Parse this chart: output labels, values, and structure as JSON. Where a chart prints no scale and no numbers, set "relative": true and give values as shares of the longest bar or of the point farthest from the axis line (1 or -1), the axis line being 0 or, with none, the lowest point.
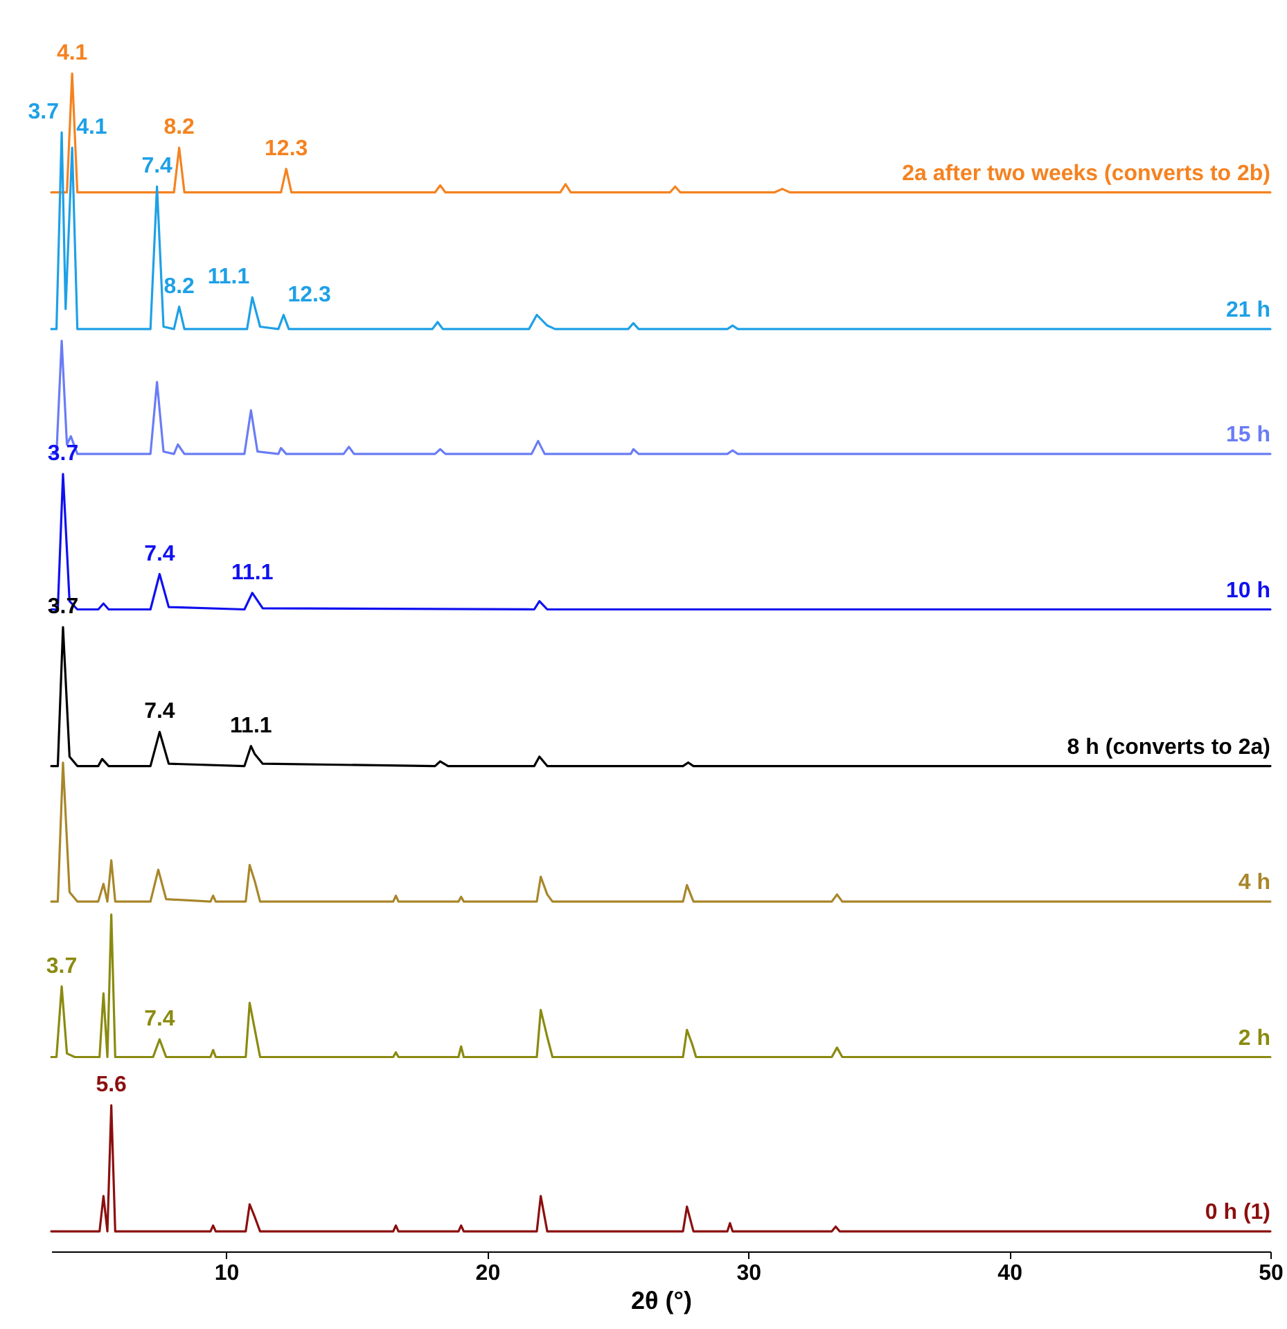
{
  "chart_data": {
    "type": "line",
    "relative": true,
    "xlabel": "2θ (°)",
    "xlim": [
      3.3,
      50
    ],
    "xticks": [
      10,
      20,
      30,
      40,
      50
    ],
    "grid": false,
    "series": [
      {
        "name": "2a after two weeks (converts to 2b)",
        "color": "#f58220",
        "x": [
          3.3,
          3.9,
          4.1,
          4.3,
          8.0,
          8.2,
          8.4,
          12.1,
          12.3,
          12.5,
          18,
          18.2,
          18.4,
          22.8,
          23,
          23.2,
          27,
          27.2,
          27.4,
          31,
          31.3,
          31.6,
          50
        ],
        "values": [
          0.899,
          0.899,
          1.0,
          0.899,
          0.899,
          0.937,
          0.899,
          0.899,
          0.919,
          0.899,
          0.899,
          0.905,
          0.899,
          0.899,
          0.906,
          0.899,
          0.899,
          0.904,
          0.899,
          0.899,
          0.902,
          0.899,
          0.899
        ]
      },
      {
        "name": "21 h",
        "color": "#1ea0e6",
        "x": [
          3.3,
          3.5,
          3.7,
          3.85,
          4.1,
          4.3,
          7.1,
          7.35,
          7.6,
          8.0,
          8.2,
          8.4,
          10.8,
          11.0,
          11.3,
          12.0,
          12.2,
          12.4,
          17.9,
          18.1,
          18.3,
          21.6,
          21.9,
          22.3,
          22.6,
          25.4,
          25.6,
          25.8,
          29.2,
          29.4,
          29.6,
          50
        ],
        "values": [
          0.783,
          0.783,
          0.95,
          0.8,
          0.937,
          0.783,
          0.783,
          0.904,
          0.785,
          0.783,
          0.802,
          0.783,
          0.783,
          0.81,
          0.785,
          0.783,
          0.795,
          0.783,
          0.783,
          0.789,
          0.783,
          0.783,
          0.795,
          0.786,
          0.783,
          0.783,
          0.788,
          0.783,
          0.783,
          0.786,
          0.783,
          0.783
        ]
      },
      {
        "name": "15 h",
        "color": "#6a7cf5",
        "x": [
          3.3,
          3.5,
          3.7,
          3.9,
          4.05,
          4.3,
          7.1,
          7.35,
          7.6,
          8.0,
          8.15,
          8.4,
          10.7,
          10.95,
          11.2,
          12.0,
          12.1,
          12.3,
          14.5,
          14.7,
          14.9,
          18,
          18.2,
          18.4,
          21.7,
          21.95,
          22.2,
          25.5,
          25.6,
          25.8,
          29.2,
          29.4,
          29.6,
          50
        ],
        "values": [
          0.677,
          0.677,
          0.773,
          0.685,
          0.692,
          0.677,
          0.677,
          0.738,
          0.679,
          0.677,
          0.685,
          0.677,
          0.677,
          0.714,
          0.679,
          0.677,
          0.682,
          0.677,
          0.677,
          0.683,
          0.677,
          0.677,
          0.681,
          0.677,
          0.677,
          0.688,
          0.677,
          0.677,
          0.681,
          0.677,
          0.677,
          0.68,
          0.677,
          0.677
        ]
      },
      {
        "name": "10 h",
        "color": "#1010f0",
        "x": [
          3.3,
          3.55,
          3.75,
          4.0,
          4.3,
          5.1,
          5.3,
          5.5,
          7.1,
          7.45,
          7.8,
          10.7,
          11.0,
          11.4,
          21.8,
          22.0,
          22.3,
          50
        ],
        "values": [
          0.545,
          0.545,
          0.66,
          0.552,
          0.545,
          0.545,
          0.55,
          0.545,
          0.545,
          0.575,
          0.547,
          0.545,
          0.559,
          0.546,
          0.545,
          0.552,
          0.545,
          0.545
        ]
      },
      {
        "name": "8 h (converts to 2a)",
        "color": "#000000",
        "x": [
          3.3,
          3.55,
          3.75,
          4.0,
          4.3,
          5.1,
          5.25,
          5.5,
          7.1,
          7.45,
          7.8,
          10.7,
          10.95,
          11.1,
          11.4,
          18.0,
          18.2,
          18.5,
          21.8,
          22.0,
          22.3,
          27.5,
          27.7,
          27.9,
          50
        ],
        "values": [
          0.412,
          0.412,
          0.53,
          0.42,
          0.412,
          0.412,
          0.418,
          0.412,
          0.412,
          0.441,
          0.414,
          0.412,
          0.429,
          0.422,
          0.414,
          0.412,
          0.416,
          0.412,
          0.412,
          0.42,
          0.412,
          0.412,
          0.415,
          0.412,
          0.412
        ]
      },
      {
        "name": "4 h",
        "color": "#a8862a",
        "x": [
          3.3,
          3.55,
          3.75,
          4.0,
          4.3,
          5.1,
          5.3,
          5.45,
          5.6,
          5.75,
          7.1,
          7.4,
          7.7,
          9.4,
          9.5,
          9.6,
          10.75,
          10.9,
          11.1,
          11.3,
          16.4,
          16.5,
          16.6,
          18.9,
          19.0,
          19.1,
          21.9,
          22.05,
          22.3,
          22.5,
          27.5,
          27.65,
          27.9,
          33.2,
          33.4,
          33.6,
          50
        ],
        "values": [
          0.297,
          0.297,
          0.415,
          0.305,
          0.297,
          0.297,
          0.312,
          0.297,
          0.332,
          0.297,
          0.297,
          0.324,
          0.299,
          0.297,
          0.302,
          0.297,
          0.297,
          0.328,
          0.314,
          0.297,
          0.297,
          0.302,
          0.297,
          0.297,
          0.301,
          0.297,
          0.297,
          0.318,
          0.303,
          0.297,
          0.297,
          0.311,
          0.297,
          0.297,
          0.303,
          0.297,
          0.297
        ]
      },
      {
        "name": "2 h",
        "color": "#8a8a10",
        "x": [
          3.3,
          3.5,
          3.7,
          3.9,
          4.2,
          5.15,
          5.3,
          5.45,
          5.6,
          5.75,
          7.2,
          7.45,
          7.7,
          9.4,
          9.5,
          9.6,
          10.75,
          10.9,
          11.1,
          11.3,
          16.4,
          16.5,
          16.6,
          18.9,
          19.0,
          19.1,
          21.9,
          22.05,
          22.3,
          22.5,
          27.5,
          27.65,
          27.85,
          28.0,
          33.2,
          33.4,
          33.6,
          50
        ],
        "values": [
          0.165,
          0.165,
          0.225,
          0.168,
          0.165,
          0.165,
          0.219,
          0.165,
          0.286,
          0.165,
          0.165,
          0.18,
          0.165,
          0.165,
          0.171,
          0.165,
          0.165,
          0.211,
          0.188,
          0.165,
          0.165,
          0.169,
          0.165,
          0.165,
          0.174,
          0.165,
          0.165,
          0.205,
          0.182,
          0.165,
          0.165,
          0.188,
          0.176,
          0.165,
          0.165,
          0.173,
          0.165,
          0.165
        ]
      },
      {
        "name": "0 h (1)",
        "color": "#8b0f0f",
        "x": [
          3.3,
          5.15,
          5.3,
          5.45,
          5.6,
          5.75,
          9.4,
          9.5,
          9.6,
          10.75,
          10.9,
          11.1,
          11.3,
          16.4,
          16.5,
          16.6,
          18.9,
          19.0,
          19.1,
          21.9,
          22.05,
          22.3,
          27.5,
          27.65,
          27.9,
          29.2,
          29.3,
          29.4,
          33.2,
          33.35,
          33.5,
          50
        ],
        "values": [
          0.017,
          0.017,
          0.047,
          0.017,
          0.124,
          0.017,
          0.017,
          0.022,
          0.017,
          0.017,
          0.04,
          0.029,
          0.017,
          0.017,
          0.022,
          0.017,
          0.017,
          0.022,
          0.017,
          0.017,
          0.047,
          0.017,
          0.017,
          0.038,
          0.017,
          0.017,
          0.024,
          0.017,
          0.017,
          0.021,
          0.017,
          0.017
        ]
      }
    ],
    "annotations": [
      {
        "text": "4.1",
        "x": 4.1,
        "y": 1.0
      },
      {
        "text": "8.2",
        "x": 8.2,
        "y": 0.937
      },
      {
        "text": "12.3",
        "x": 12.3,
        "y": 0.919
      },
      {
        "text": "3.7",
        "x": 3.7,
        "y": 0.95
      },
      {
        "text": "4.1",
        "x": 4.1,
        "y": 0.937
      },
      {
        "text": "7.4",
        "x": 7.35,
        "y": 0.904
      },
      {
        "text": "8.2",
        "x": 8.2,
        "y": 0.802
      },
      {
        "text": "11.1",
        "x": 11.0,
        "y": 0.81
      },
      {
        "text": "12.3",
        "x": 12.2,
        "y": 0.795
      },
      {
        "text": "3.7",
        "x": 3.75,
        "y": 0.66
      },
      {
        "text": "7.4",
        "x": 7.45,
        "y": 0.575
      },
      {
        "text": "11.1",
        "x": 11.0,
        "y": 0.559
      },
      {
        "text": "3.7",
        "x": 3.75,
        "y": 0.53
      },
      {
        "text": "7.4",
        "x": 7.45,
        "y": 0.441
      },
      {
        "text": "11.1",
        "x": 10.95,
        "y": 0.429
      },
      {
        "text": "3.7",
        "x": 3.7,
        "y": 0.225
      },
      {
        "text": "7.4",
        "x": 7.45,
        "y": 0.18
      },
      {
        "text": "5.6",
        "x": 5.6,
        "y": 0.124
      }
    ]
  }
}
